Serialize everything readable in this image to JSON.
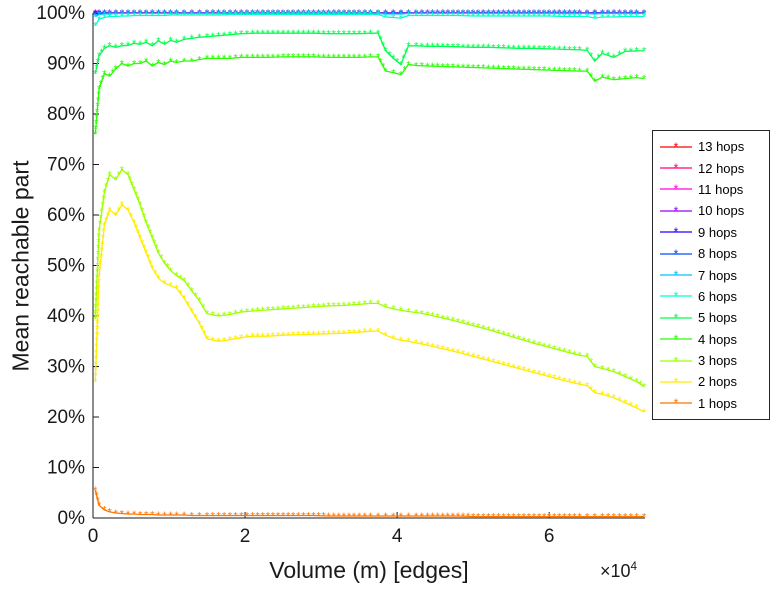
{
  "chart_data": {
    "type": "line",
    "title": "",
    "xlabel": "Volume (m) [edges]",
    "ylabel": "Mean reachable part",
    "x_multiplier_base": "×10",
    "x_multiplier_exp": "4",
    "xlim": [
      0,
      72600
    ],
    "ylim": [
      0,
      100
    ],
    "xticks": [
      0,
      20000,
      40000,
      60000
    ],
    "xtick_labels": [
      "0",
      "2",
      "4",
      "6"
    ],
    "yticks": [
      0,
      10,
      20,
      30,
      40,
      50,
      60,
      70,
      80,
      90,
      100
    ],
    "ytick_labels": [
      "0%",
      "10%",
      "20%",
      "30%",
      "40%",
      "50%",
      "60%",
      "70%",
      "80%",
      "90%",
      "100%"
    ],
    "grid": false,
    "legend_position": "right-outside",
    "marker": "asterisk",
    "axis_color": "#1a1a1a",
    "background": "#ffffff",
    "x": [
      300,
      800,
      1500,
      2200,
      3000,
      3800,
      4600,
      5400,
      6200,
      7000,
      7800,
      8600,
      9400,
      10200,
      11000,
      12000,
      13000,
      14000,
      15000,
      16500,
      18000,
      19500,
      21000,
      23000,
      25000,
      27000,
      29000,
      31000,
      33000,
      35000,
      36500,
      37500,
      38500,
      39500,
      40500,
      41500,
      42500,
      44000,
      46000,
      48000,
      50000,
      52000,
      54000,
      56000,
      58000,
      60000,
      62000,
      64000,
      65000,
      66000,
      67000,
      68500,
      70000,
      71500,
      72500
    ],
    "series": [
      {
        "name": "1 hops",
        "color": "#FF7600",
        "y": [
          5.5,
          2.5,
          1.6,
          1.2,
          1,
          0.9,
          0.8,
          0.8,
          0.7,
          0.7,
          0.7,
          0.6,
          0.6,
          0.6,
          0.6,
          0.6,
          0.5,
          0.5,
          0.5,
          0.5,
          0.5,
          0.5,
          0.5,
          0.5,
          0.5,
          0.5,
          0.5,
          0.4,
          0.4,
          0.4,
          0.4,
          0.4,
          0.4,
          0.4,
          0.4,
          0.4,
          0.4,
          0.4,
          0.4,
          0.4,
          0.3,
          0.3,
          0.3,
          0.3,
          0.3,
          0.3,
          0.3,
          0.3,
          0.3,
          0.3,
          0.3,
          0.3,
          0.3,
          0.3,
          0.3
        ]
      },
      {
        "name": "2 hops",
        "color": "#FFEC00",
        "y": [
          27,
          48,
          58,
          61,
          60,
          62,
          61,
          58.5,
          55.5,
          52.5,
          49.5,
          47.5,
          46.5,
          46,
          45.5,
          43.5,
          41,
          38.5,
          35.5,
          35,
          35.3,
          35.7,
          36,
          36,
          36.2,
          36.3,
          36.4,
          36.5,
          36.6,
          36.8,
          37,
          37,
          36.2,
          35.6,
          35.2,
          35,
          34.7,
          34.2,
          33.5,
          32.8,
          32,
          31.2,
          30.4,
          29.6,
          28.8,
          28,
          27.2,
          26.5,
          26.2,
          24.8,
          24.5,
          23.8,
          22.8,
          21.8,
          21
        ]
      },
      {
        "name": "3 hops",
        "color": "#9DFF00",
        "y": [
          39.5,
          57,
          64.5,
          68,
          67,
          69,
          68,
          65,
          62,
          58.5,
          55.5,
          52.5,
          50.5,
          49,
          48,
          47,
          45,
          43,
          40.5,
          40,
          40.3,
          40.8,
          41,
          41.2,
          41.4,
          41.6,
          41.8,
          42,
          42.1,
          42.3,
          42.5,
          42.5,
          41.8,
          41.4,
          41.1,
          40.9,
          40.7,
          40.3,
          39.6,
          38.9,
          38.1,
          37.3,
          36.4,
          35.5,
          34.6,
          33.8,
          33,
          32.2,
          32,
          30,
          29.6,
          29,
          28,
          27,
          26
        ]
      },
      {
        "name": "4 hops",
        "color": "#27FF00",
        "y": [
          76,
          85,
          88,
          87.5,
          89,
          90,
          89.5,
          90,
          90,
          90.5,
          89.5,
          90.2,
          89.8,
          90.5,
          90.2,
          90.5,
          90.5,
          90.8,
          91,
          91,
          91,
          91.2,
          91.2,
          91.2,
          91.3,
          91.3,
          91.3,
          91.2,
          91.2,
          91.2,
          91.3,
          91.3,
          88.5,
          88.2,
          87.8,
          89.8,
          89.6,
          89.5,
          89.4,
          89.3,
          89.2,
          89.1,
          89,
          88.9,
          88.8,
          88.7,
          88.6,
          88.5,
          88.5,
          86.5,
          87.3,
          86.8,
          87,
          87.2,
          87
        ]
      },
      {
        "name": "5 hops",
        "color": "#00FF4E",
        "y": [
          88,
          91.5,
          93,
          93.5,
          93.2,
          93.5,
          93.6,
          94,
          93.8,
          94.2,
          93.5,
          94.5,
          93.8,
          94.6,
          94.2,
          94.8,
          95,
          95.2,
          95.3,
          95.5,
          95.7,
          95.9,
          96,
          96,
          96,
          96,
          96,
          95.9,
          95.9,
          95.9,
          96,
          96,
          92.5,
          91,
          89.8,
          93.5,
          93.5,
          93.4,
          93.4,
          93.3,
          93.2,
          93.2,
          93.1,
          93,
          93,
          92.9,
          92.8,
          92.7,
          92.6,
          90.5,
          92,
          91.2,
          92.4,
          92.5,
          92.5
        ]
      },
      {
        "name": "6 hops",
        "color": "#00FFC4",
        "y": [
          97.5,
          98.8,
          99.1,
          99.3,
          99.3,
          99.4,
          99.4,
          99.5,
          99.5,
          99.5,
          99.5,
          99.5,
          99.5,
          99.6,
          99.6,
          99.6,
          99.6,
          99.6,
          99.6,
          99.6,
          99.7,
          99.7,
          99.7,
          99.7,
          99.7,
          99.7,
          99.7,
          99.7,
          99.7,
          99.7,
          99.7,
          99.7,
          99.2,
          99.1,
          99,
          99.5,
          99.5,
          99.5,
          99.5,
          99.5,
          99.4,
          99.4,
          99.4,
          99.4,
          99.4,
          99.4,
          99.3,
          99.3,
          99.3,
          99,
          99.2,
          99.2,
          99.3,
          99.3,
          99.3
        ]
      },
      {
        "name": "7 hops",
        "color": "#00C4FF",
        "y": [
          99.3,
          99.7,
          99.8,
          99.85,
          99.9,
          99.9,
          99.9,
          99.9,
          99.9,
          99.9,
          99.9,
          99.9,
          99.9,
          99.9,
          99.9,
          99.9,
          99.9,
          99.9,
          99.9,
          99.9,
          99.9,
          99.9,
          99.9,
          99.9,
          99.9,
          99.9,
          99.9,
          99.9,
          99.9,
          99.9,
          99.9,
          99.9,
          99.8,
          99.8,
          99.8,
          99.9,
          99.9,
          99.9,
          99.9,
          99.9,
          99.9,
          99.9,
          99.9,
          99.9,
          99.9,
          99.9,
          99.9,
          99.9,
          99.9,
          99.8,
          99.9,
          99.9,
          99.9,
          99.9,
          99.9
        ]
      },
      {
        "name": "8 hops",
        "color": "#004EFF",
        "y": [
          99.7,
          99.85,
          99.95,
          99.95,
          99.95,
          99.95,
          99.95,
          99.95,
          99.95,
          99.95,
          99.95,
          99.95,
          99.95,
          99.95,
          99.95,
          99.95,
          99.95,
          99.95,
          99.95,
          99.95,
          99.95,
          99.95,
          99.95,
          99.95,
          99.95,
          99.95,
          99.95,
          99.95,
          99.95,
          99.95,
          99.95,
          99.95,
          99.95,
          99.95,
          99.95,
          99.95,
          99.95,
          99.95,
          99.95,
          99.95,
          99.95,
          99.95,
          99.95,
          99.95,
          99.95,
          99.95,
          99.95,
          99.95,
          99.95,
          99.95,
          99.95,
          99.95,
          99.95,
          99.95,
          99.95
        ]
      },
      {
        "name": "9 hops",
        "color": "#2700FF",
        "y": [
          99.85,
          99.98,
          99.98,
          99.98,
          99.98,
          99.98,
          99.98,
          99.98,
          99.98,
          99.98,
          99.98,
          99.98,
          99.98,
          99.98,
          99.98,
          99.98,
          99.98,
          99.98,
          99.98,
          99.98,
          99.98,
          99.98,
          99.98,
          99.98,
          99.98,
          99.98,
          99.98,
          99.98,
          99.98,
          99.98,
          99.98,
          99.98,
          99.98,
          99.98,
          99.98,
          99.98,
          99.98,
          99.98,
          99.98,
          99.98,
          99.98,
          99.98,
          99.98,
          99.98,
          99.98,
          99.98,
          99.98,
          99.98,
          99.98,
          99.98,
          99.98,
          99.98,
          99.98,
          99.98,
          99.98
        ]
      },
      {
        "name": "10 hops",
        "color": "#9D00FF",
        "y": [
          100,
          100,
          100,
          100,
          100,
          100,
          100,
          100,
          100,
          100,
          100,
          100,
          100,
          100,
          100,
          100,
          100,
          100,
          100,
          100,
          100,
          100,
          100,
          100,
          100,
          100,
          100,
          100,
          100,
          100,
          100,
          100,
          100,
          100,
          100,
          100,
          100,
          100,
          100,
          100,
          100,
          100,
          100,
          100,
          100,
          100,
          100,
          100,
          100,
          100,
          100,
          100,
          100,
          100,
          100
        ]
      },
      {
        "name": "11 hops",
        "color": "#FF00EC",
        "y": [
          100,
          100,
          100,
          100,
          100,
          100,
          100,
          100,
          100,
          100,
          100,
          100,
          100,
          100,
          100,
          100,
          100,
          100,
          100,
          100,
          100,
          100,
          100,
          100,
          100,
          100,
          100,
          100,
          100,
          100,
          100,
          100,
          100,
          100,
          100,
          100,
          100,
          100,
          100,
          100,
          100,
          100,
          100,
          100,
          100,
          100,
          100,
          100,
          100,
          100,
          100,
          100,
          100,
          100,
          100
        ]
      },
      {
        "name": "12 hops",
        "color": "#FF0076",
        "y": [
          100,
          100,
          100,
          100,
          100,
          100,
          100,
          100,
          100,
          100,
          100,
          100,
          100,
          100,
          100,
          100,
          100,
          100,
          100,
          100,
          100,
          100,
          100,
          100,
          100,
          100,
          100,
          100,
          100,
          100,
          100,
          100,
          100,
          100,
          100,
          100,
          100,
          100,
          100,
          100,
          100,
          100,
          100,
          100,
          100,
          100,
          100,
          100,
          100,
          100,
          100,
          100,
          100,
          100,
          100
        ]
      },
      {
        "name": "13 hops",
        "color": "#FF0000",
        "y": [
          100,
          100,
          100,
          100,
          100,
          100,
          100,
          100,
          100,
          100,
          100,
          100,
          100,
          100,
          100,
          100,
          100,
          100,
          100,
          100,
          100,
          100,
          100,
          100,
          100,
          100,
          100,
          100,
          100,
          100,
          100,
          100,
          100,
          100,
          100,
          100,
          100,
          100,
          100,
          100,
          100,
          100,
          100,
          100,
          100,
          100,
          100,
          100,
          100,
          100,
          100,
          100,
          100,
          100,
          100
        ]
      }
    ]
  }
}
